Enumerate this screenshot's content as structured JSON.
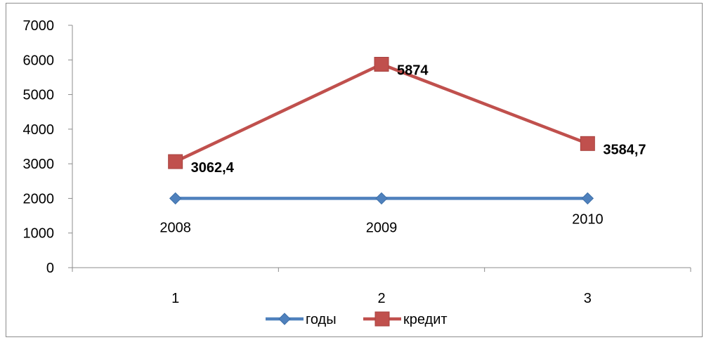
{
  "chart_data": {
    "type": "line",
    "x": [
      1,
      2,
      3
    ],
    "xlim": [
      0.5,
      3.5
    ],
    "ylim": [
      0,
      7000
    ],
    "y_ticks": [
      0,
      1000,
      2000,
      3000,
      4000,
      5000,
      6000,
      7000
    ],
    "grid": false,
    "legend_position": "bottom",
    "series": [
      {
        "name": "годы",
        "values": [
          2000,
          2000,
          2000
        ],
        "data_labels": [
          "2008",
          "2009",
          "2010"
        ],
        "color": "#4f81bd",
        "marker": "diamond"
      },
      {
        "name": "кредит",
        "values": [
          3062.4,
          5874,
          3584.7
        ],
        "data_labels": [
          "3062,4",
          "5874",
          "3584,7"
        ],
        "color": "#c0504d",
        "marker": "square"
      }
    ]
  }
}
